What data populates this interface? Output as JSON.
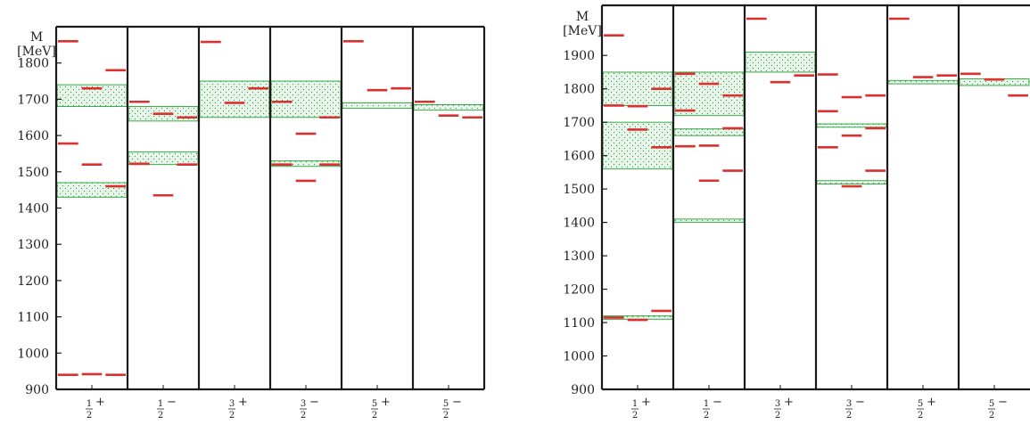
{
  "colors": {
    "frame": "#1a1a1a",
    "level": "#d93030",
    "band_stroke": "#3aa84a",
    "band_fill": "#e8f5ea",
    "band_dot": "#2e9a3e"
  },
  "chart_data": [
    {
      "type": "level-scheme",
      "ylabel_line1": "M",
      "ylabel_line2": "[MeV]",
      "ylim": [
        900,
        1900
      ],
      "yticks": [
        900,
        1000,
        1100,
        1200,
        1300,
        1400,
        1500,
        1600,
        1700,
        1800
      ],
      "columns": [
        {
          "num": "1",
          "den": "2",
          "parity": "+",
          "bands": [
            [
              1680,
              1740
            ],
            [
              1430,
              1470
            ]
          ],
          "levels": [
            [
              0,
              1860
            ],
            [
              0,
              1578
            ],
            [
              0,
              940
            ],
            [
              1,
              1730
            ],
            [
              1,
              1520
            ],
            [
              1,
              942
            ],
            [
              2,
              1780
            ],
            [
              2,
              1460
            ],
            [
              2,
              940
            ]
          ]
        },
        {
          "num": "1",
          "den": "2",
          "parity": "−",
          "bands": [
            [
              1640,
              1680
            ],
            [
              1520,
              1555
            ]
          ],
          "levels": [
            [
              0,
              1693
            ],
            [
              0,
              1522
            ],
            [
              1,
              1660
            ],
            [
              1,
              1435
            ],
            [
              2,
              1650
            ],
            [
              2,
              1520
            ]
          ]
        },
        {
          "num": "3",
          "den": "2",
          "parity": "+",
          "bands": [
            [
              1650,
              1750
            ]
          ],
          "levels": [
            [
              0,
              1858
            ],
            [
              1,
              1690
            ],
            [
              2,
              1730
            ]
          ]
        },
        {
          "num": "3",
          "den": "2",
          "parity": "−",
          "bands": [
            [
              1650,
              1750
            ],
            [
              1515,
              1530
            ]
          ],
          "levels": [
            [
              0,
              1693
            ],
            [
              0,
              1520
            ],
            [
              1,
              1605
            ],
            [
              1,
              1475
            ],
            [
              2,
              1650
            ],
            [
              2,
              1520
            ]
          ]
        },
        {
          "num": "5",
          "den": "2",
          "parity": "+",
          "bands": [
            [
              1675,
              1690
            ]
          ],
          "levels": [
            [
              0,
              1860
            ],
            [
              1,
              1725
            ],
            [
              2,
              1730
            ]
          ]
        },
        {
          "num": "5",
          "den": "2",
          "parity": "−",
          "bands": [
            [
              1670,
              1685
            ]
          ],
          "levels": [
            [
              0,
              1693
            ],
            [
              1,
              1655
            ],
            [
              2,
              1650
            ]
          ]
        }
      ]
    },
    {
      "type": "level-scheme",
      "ylabel_line1": "M",
      "ylabel_line2": "[MeV]",
      "ylim": [
        900,
        2050
      ],
      "yticks": [
        900,
        1000,
        1100,
        1200,
        1300,
        1400,
        1500,
        1600,
        1700,
        1800,
        1900
      ],
      "columns": [
        {
          "num": "1",
          "den": "2",
          "parity": "+",
          "bands": [
            [
              1750,
              1850
            ],
            [
              1560,
              1700
            ],
            [
              1110,
              1120
            ]
          ],
          "levels": [
            [
              0,
              1960
            ],
            [
              0,
              1750
            ],
            [
              0,
              1115
            ],
            [
              1,
              1748
            ],
            [
              1,
              1678
            ],
            [
              1,
              1108
            ],
            [
              2,
              1800
            ],
            [
              2,
              1625
            ],
            [
              2,
              1135
            ]
          ]
        },
        {
          "num": "1",
          "den": "2",
          "parity": "−",
          "bands": [
            [
              1720,
              1850
            ],
            [
              1660,
              1680
            ],
            [
              1400,
              1410
            ]
          ],
          "levels": [
            [
              0,
              1845
            ],
            [
              0,
              1735
            ],
            [
              0,
              1628
            ],
            [
              1,
              1815
            ],
            [
              1,
              1630
            ],
            [
              1,
              1525
            ],
            [
              2,
              1780
            ],
            [
              2,
              1682
            ],
            [
              2,
              1555
            ]
          ]
        },
        {
          "num": "3",
          "den": "2",
          "parity": "+",
          "bands": [
            [
              1850,
              1910
            ]
          ],
          "levels": [
            [
              0,
              2010
            ],
            [
              1,
              1820
            ],
            [
              2,
              1840
            ]
          ]
        },
        {
          "num": "3",
          "den": "2",
          "parity": "−",
          "bands": [
            [
              1685,
              1695
            ],
            [
              1515,
              1525
            ]
          ],
          "levels": [
            [
              0,
              1843
            ],
            [
              0,
              1733
            ],
            [
              0,
              1625
            ],
            [
              1,
              1775
            ],
            [
              1,
              1660
            ],
            [
              1,
              1508
            ],
            [
              2,
              1780
            ],
            [
              2,
              1682
            ],
            [
              2,
              1555
            ]
          ]
        },
        {
          "num": "5",
          "den": "2",
          "parity": "+",
          "bands": [
            [
              1815,
              1825
            ]
          ],
          "levels": [
            [
              0,
              2010
            ],
            [
              1,
              1835
            ],
            [
              2,
              1840
            ]
          ]
        },
        {
          "num": "5",
          "den": "2",
          "parity": "−",
          "bands": [
            [
              1810,
              1830
            ]
          ],
          "levels": [
            [
              0,
              1845
            ],
            [
              1,
              1828
            ],
            [
              2,
              1780
            ]
          ]
        }
      ]
    }
  ]
}
